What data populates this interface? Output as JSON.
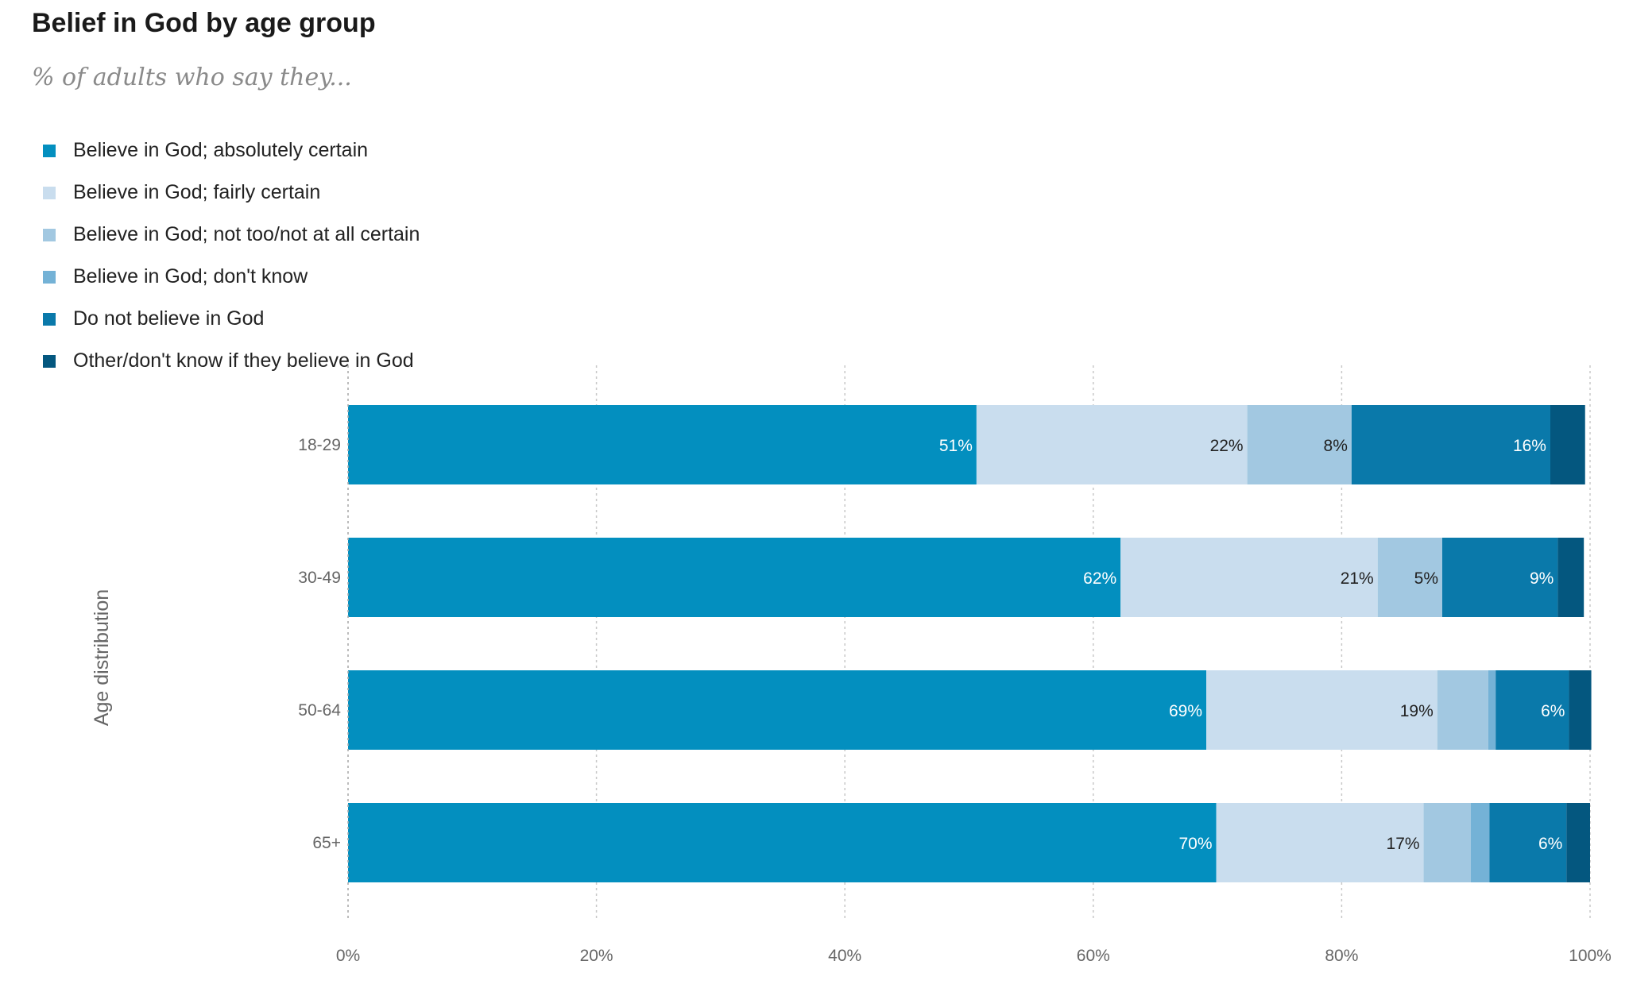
{
  "title": "Belief in God by age group",
  "subtitle": "% of adults who say they...",
  "chart_data": {
    "type": "bar",
    "orientation": "horizontal",
    "stacked": true,
    "title": "Belief in God by age group",
    "subtitle": "% of adults who say they...",
    "ylabel": "Age distribution",
    "xlabel": "",
    "categories": [
      "18-29",
      "30-49",
      "50-64",
      "65+"
    ],
    "xlim": [
      0,
      100
    ],
    "x_ticks": [
      "0%",
      "20%",
      "40%",
      "60%",
      "80%",
      "100%"
    ],
    "grid": "vertical dotted",
    "legend_position": "top-left",
    "series": [
      {
        "name": "Believe in God; absolutely certain",
        "color": "#038fbf",
        "label_color": "#ffffff",
        "values": [
          50.6,
          62.2,
          69.1,
          69.9
        ],
        "labels": [
          "51%",
          "62%",
          "69%",
          "70%"
        ]
      },
      {
        "name": "Believe in God; fairly certain",
        "color": "#c9ddee",
        "label_color": "#222222",
        "values": [
          21.8,
          20.7,
          18.6,
          16.7
        ],
        "labels": [
          "22%",
          "21%",
          "19%",
          "17%"
        ]
      },
      {
        "name": "Believe in God; not too/not at all certain",
        "color": "#a2c8e1",
        "label_color": "#222222",
        "values": [
          8.4,
          5.2,
          4.1,
          3.8
        ],
        "labels": [
          "8%",
          "5%",
          "",
          ""
        ]
      },
      {
        "name": "Believe in God; don't know",
        "color": "#74b2d6",
        "label_color": "#222222",
        "values": [
          0,
          0,
          0.6,
          1.5
        ],
        "labels": [
          "",
          "",
          "",
          ""
        ]
      },
      {
        "name": "Do not believe in God",
        "color": "#0a79aa",
        "label_color": "#ffffff",
        "values": [
          16.0,
          9.3,
          5.9,
          6.2
        ],
        "labels": [
          "16%",
          "9%",
          "6%",
          "6%"
        ]
      },
      {
        "name": "Other/don't know if they believe in God",
        "color": "#04577f",
        "label_color": "#ffffff",
        "values": [
          2.8,
          2.1,
          1.8,
          1.9
        ],
        "labels": [
          "",
          "",
          "",
          ""
        ]
      }
    ]
  }
}
